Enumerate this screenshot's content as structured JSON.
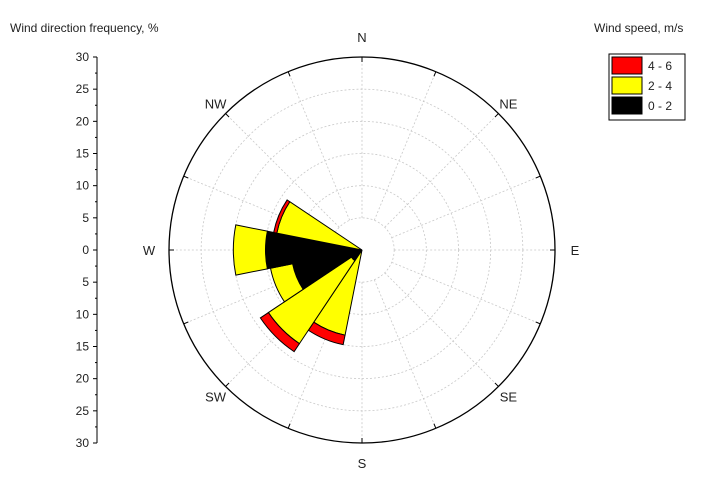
{
  "chart_data": {
    "type": "wind-rose",
    "title": "",
    "ylabel": "Wind direction frequency, %",
    "legend_title": "Wind speed, m/s",
    "legend_position": "top-right",
    "radial_range": [
      0,
      30
    ],
    "radial_ticks": [
      "30",
      "25",
      "20",
      "15",
      "10",
      "5",
      "0",
      "5",
      "10",
      "15",
      "20",
      "25",
      "30"
    ],
    "directions": [
      "N",
      "NE",
      "E",
      "SE",
      "S",
      "SW",
      "W",
      "NW"
    ],
    "grid": true,
    "series": [
      {
        "name": "0 - 2",
        "color": "#000000"
      },
      {
        "name": "2 - 4",
        "color": "#ffff00"
      },
      {
        "name": "4 - 6",
        "color": "#ff0000"
      }
    ],
    "sectors": [
      {
        "bearing": 202.5,
        "segments": [
          0,
          13.5,
          15
        ]
      },
      {
        "bearing": 225,
        "segments": [
          2,
          17.5,
          19
        ]
      },
      {
        "bearing": 247.5,
        "segments": [
          11,
          14.5,
          14.5
        ]
      },
      {
        "bearing": 270,
        "segments": [
          15,
          20,
          20
        ]
      },
      {
        "bearing": 292.5,
        "segments": [
          0,
          13.5,
          14
        ]
      }
    ]
  }
}
